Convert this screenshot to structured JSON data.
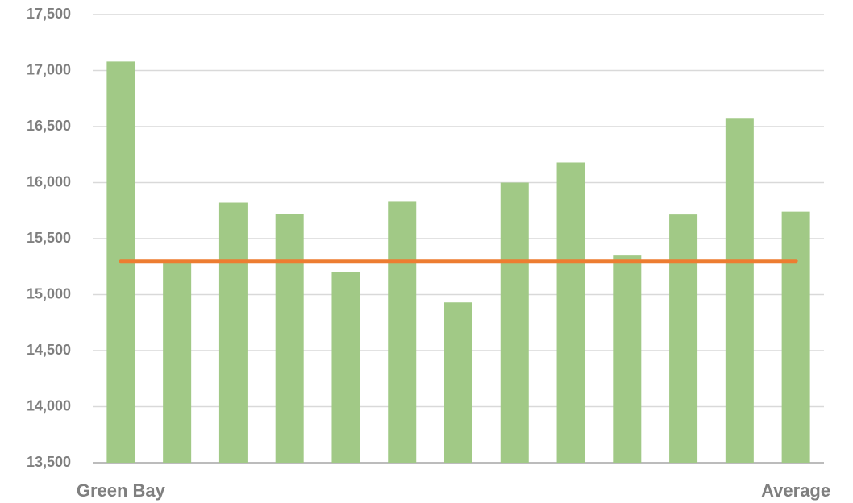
{
  "chart_data": {
    "type": "bar",
    "categories": [
      "Green Bay",
      null,
      null,
      null,
      null,
      null,
      null,
      null,
      null,
      null,
      null,
      null,
      "Average"
    ],
    "series": [
      {
        "type": "bar",
        "color": "#a1c986",
        "values": [
          17080,
          15290,
          15820,
          15720,
          15200,
          15835,
          14930,
          16000,
          16180,
          15355,
          15715,
          16570,
          15740
        ]
      },
      {
        "type": "line",
        "color": "#ed7d31",
        "values": [
          15300,
          15300,
          15300,
          15300,
          15300,
          15300,
          15300,
          15300,
          15300,
          15300,
          15300,
          15300,
          15300
        ]
      }
    ],
    "ylim": [
      13500,
      17500
    ],
    "yticks": [
      {
        "value": 13500,
        "label": "13,500"
      },
      {
        "value": 14000,
        "label": "14,000"
      },
      {
        "value": 14500,
        "label": "14,500"
      },
      {
        "value": 15000,
        "label": "15,000"
      },
      {
        "value": 15500,
        "label": "15,500"
      },
      {
        "value": 16000,
        "label": "16,000"
      },
      {
        "value": 16500,
        "label": "16,500"
      },
      {
        "value": 17000,
        "label": "17,000"
      },
      {
        "value": 17500,
        "label": "17,500"
      }
    ],
    "grid": true
  }
}
